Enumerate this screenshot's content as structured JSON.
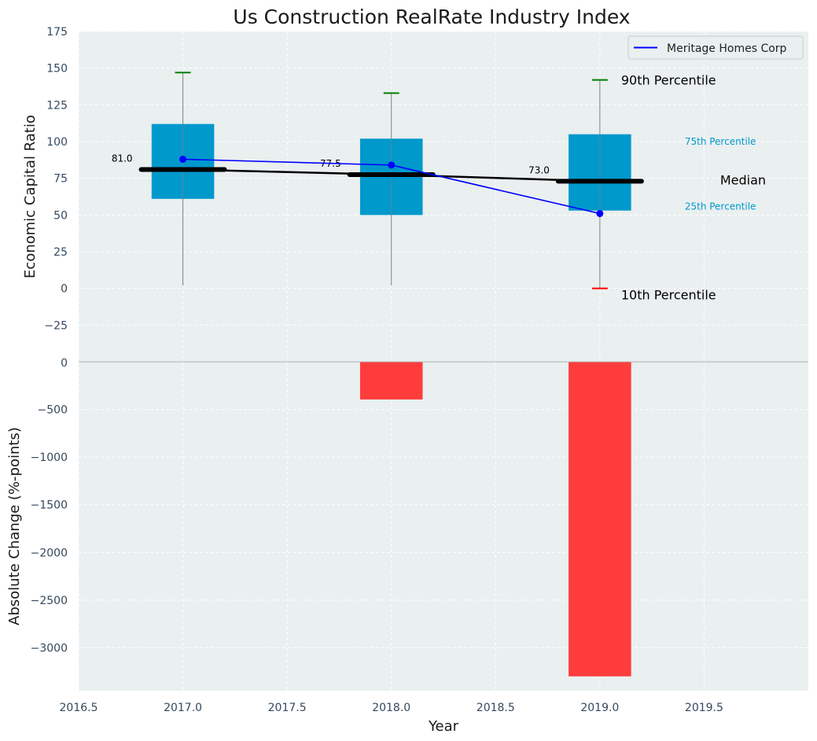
{
  "chart_data": {
    "title": "Us Construction RealRate Industry Index",
    "xlabel": "Year",
    "x_ticks": [
      "2016.5",
      "2017.0",
      "2017.5",
      "2018.0",
      "2018.5",
      "2019.0",
      "2019.5"
    ],
    "xlim": [
      2016.5,
      2020.0
    ],
    "grid": true,
    "legend_position": "top-right",
    "colors": {
      "box": "#0099cc",
      "company_line": "#0000ff",
      "median_line": "#000000",
      "change_bar": "#ff3c3c",
      "p90_cap": "#008000",
      "p10_cap": "#ff0000",
      "whisker": "#808080",
      "panel_bg": "#eaeff0"
    },
    "top_panel": {
      "type": "box",
      "ylabel": "Economic Capital Ratio",
      "ylim": [
        -50,
        175
      ],
      "y_ticks": [
        "175",
        "150",
        "125",
        "100",
        "75",
        "50",
        "25",
        "0",
        "−25"
      ],
      "years": [
        2017,
        2018,
        2019
      ],
      "p10": [
        2,
        2,
        0
      ],
      "p25": [
        61,
        50,
        53
      ],
      "median": [
        81.0,
        77.5,
        73.0
      ],
      "p75": [
        112,
        102,
        105
      ],
      "p90": [
        147,
        133,
        142
      ],
      "median_labels": [
        "81.0",
        "77.5",
        "73.0"
      ],
      "series": [
        {
          "name": "Meritage Homes Corp",
          "values": [
            88,
            84,
            51
          ]
        }
      ],
      "annotations": {
        "p90": "90th Percentile",
        "p75": "75th Percentile",
        "median": "Median",
        "p25": "25th Percentile",
        "p10": "10th Percentile"
      }
    },
    "bottom_panel": {
      "type": "bar",
      "ylabel": "Absolute Change (%-points)",
      "ylim": [
        -3450,
        0
      ],
      "y_ticks": [
        "0",
        "−500",
        "−1000",
        "−1500",
        "−2000",
        "−2500",
        "−3000"
      ],
      "years": [
        2018,
        2019
      ],
      "values": [
        -395,
        -3300
      ]
    }
  }
}
